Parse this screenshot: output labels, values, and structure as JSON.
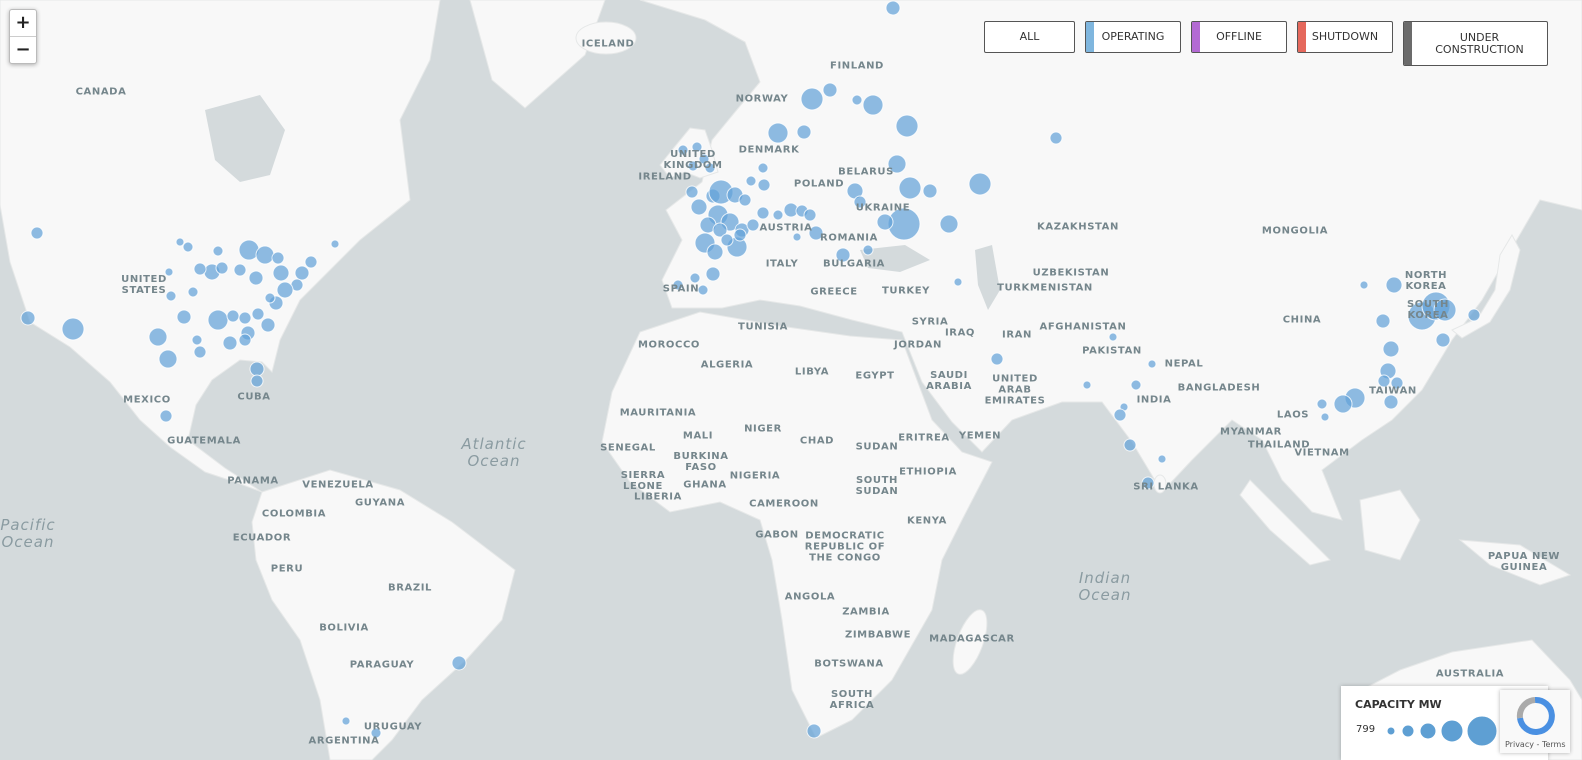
{
  "controls": {
    "zoom_in": "+",
    "zoom_out": "−"
  },
  "filters": [
    {
      "label": "ALL"
    },
    {
      "label": "OPERATING",
      "color": "#7fb6de"
    },
    {
      "label": "OFFLINE",
      "color": "#b36ad3"
    },
    {
      "label": "SHUTDOWN",
      "color": "#e5685c"
    },
    {
      "label": "UNDER CONSTRUCTION",
      "color": "#6b6b6b"
    }
  ],
  "map": {
    "labels": [
      "CANADA",
      "UNITED STATES",
      "MEXICO",
      "CUBA",
      "GUATEMALA",
      "PANAMA",
      "VENEZUELA",
      "GUYANA",
      "COLOMBIA",
      "ECUADOR",
      "PERU",
      "BRAZIL",
      "BOLIVIA",
      "PARAGUAY",
      "URUGUAY",
      "ARGENTINA",
      "ICELAND",
      "NORWAY",
      "FINLAND",
      "DENMARK",
      "UNITED KINGDOM",
      "IRELAND",
      "BELARUS",
      "POLAND",
      "UKRAINE",
      "ROMANIA",
      "AUSTRIA",
      "BULGARIA",
      "ITALY",
      "SPAIN",
      "GREECE",
      "TURKEY",
      "KAZAKHSTAN",
      "MONGOLIA",
      "UZBEKISTAN",
      "TURKMENISTAN",
      "SYRIA",
      "IRAQ",
      "IRAN",
      "AFGHANISTAN",
      "JORDAN",
      "PAKISTAN",
      "NEPAL",
      "SAUDI ARABIA",
      "UNITED ARAB EMIRATES",
      "INDIA",
      "BANGLADESH",
      "CHINA",
      "NORTH KOREA",
      "SOUTH KOREA",
      "TAIWAN",
      "LAOS",
      "MYANMAR",
      "THAILAND",
      "VIETNAM",
      "SRI LANKA",
      "YEMEN",
      "ERITREA",
      "ETHIOPIA",
      "SUDAN",
      "SOUTH SUDAN",
      "KENYA",
      "TUNISIA",
      "MOROCCO",
      "ALGERIA",
      "LIBYA",
      "EGYPT",
      "MAURITANIA",
      "MALI",
      "NIGER",
      "CHAD",
      "BURKINA FASO",
      "SENEGAL",
      "SIERRA LEONE",
      "LIBERIA",
      "GHANA",
      "NIGERIA",
      "CAMEROON",
      "GABON",
      "DEMOCRATIC REPUBLIC OF THE CONGO",
      "ANGOLA",
      "ZAMBIA",
      "ZIMBABWE",
      "MADAGASCAR",
      "BOTSWANA",
      "SOUTH AFRICA",
      "PAPUA NEW GUINEA",
      "AUSTRALIA"
    ],
    "oceans": [
      "Atlantic Ocean",
      "Pacific Ocean",
      "Indian Ocean"
    ]
  },
  "legend": {
    "title": "CAPACITY MW",
    "min": 799
  },
  "recaptcha": {
    "links": "Privacy - Terms"
  }
}
